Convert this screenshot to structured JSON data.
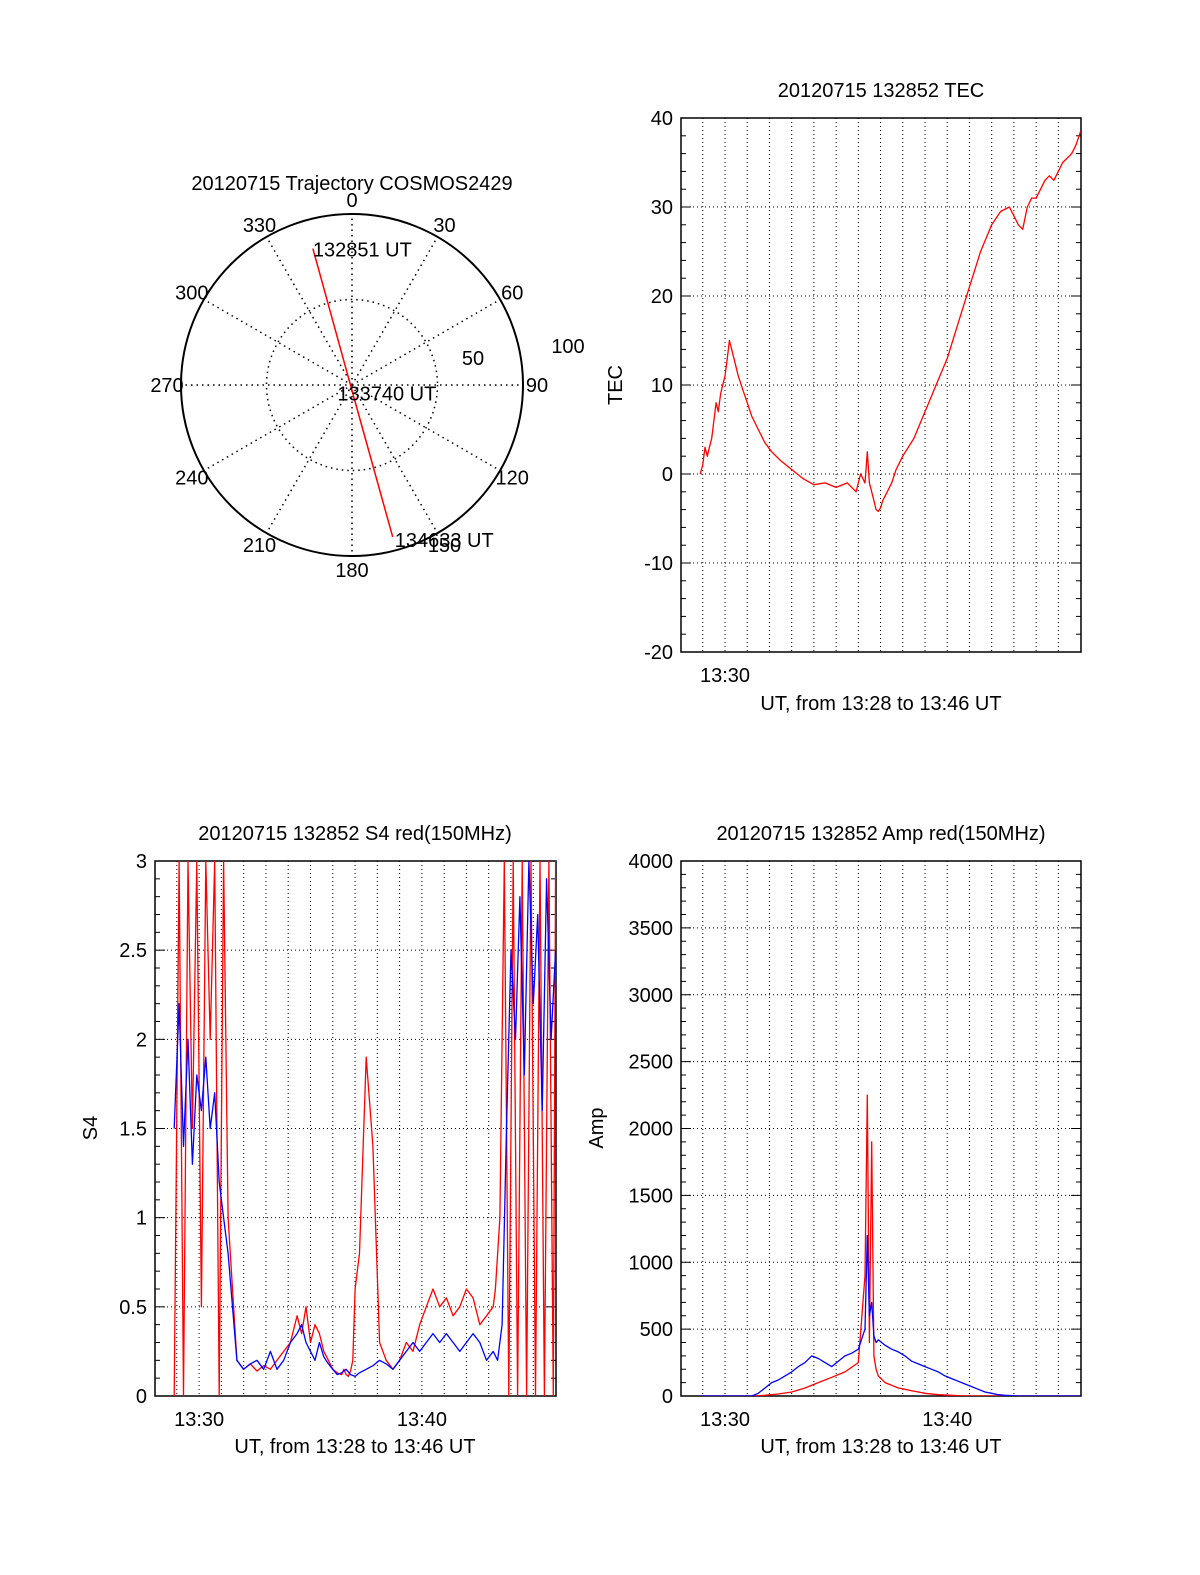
{
  "chart_data": [
    {
      "type": "polar",
      "title": "20120715 Trajectory COSMOS2429",
      "azimuth_labels": [
        "0",
        "30",
        "60",
        "90",
        "120",
        "150",
        "180",
        "210",
        "240",
        "270",
        "300",
        "330"
      ],
      "zenith_rings": [
        50,
        100
      ],
      "zenith_ring_labels": [
        "50",
        "100"
      ],
      "track": {
        "color": "#ff0000",
        "points": [
          {
            "az": 344,
            "zen": 83,
            "label": "132851 UT"
          },
          {
            "az": 190,
            "zen": 2,
            "label": "133740 UT"
          },
          {
            "az": 165,
            "zen": 92,
            "label": "134633 UT"
          }
        ]
      }
    },
    {
      "type": "line",
      "title": "20120715 132852 TEC",
      "xlabel": "UT, from 13:28 to 13:46 UT",
      "ylabel": "TEC",
      "xlim": [
        13.467,
        13.767
      ],
      "ylim": [
        -20,
        40
      ],
      "y_ticks": [
        "-20",
        "-10",
        "0",
        "10",
        "20",
        "30",
        "40"
      ],
      "x_ticks": [
        {
          "value": 13.5,
          "label": "13:30"
        }
      ],
      "grid": true,
      "series": [
        {
          "color": "#ff0000",
          "x": [
            13.4814,
            13.4833,
            13.485,
            13.4867,
            13.4883,
            13.49,
            13.4917,
            13.4933,
            13.495,
            13.4967,
            13.4983,
            13.5,
            13.5017,
            13.5033,
            13.505,
            13.5067,
            13.5083,
            13.51,
            13.5133,
            13.5167,
            13.52,
            13.525,
            13.53,
            13.535,
            13.5417,
            13.55,
            13.5583,
            13.5667,
            13.575,
            13.5833,
            13.5917,
            13.5983,
            13.6017,
            13.605,
            13.6067,
            13.6083,
            13.61,
            13.6117,
            13.6133,
            13.615,
            13.6167,
            13.6183,
            13.62,
            13.625,
            13.6283,
            13.6333,
            13.6417,
            13.65,
            13.6583,
            13.6667,
            13.675,
            13.6833,
            13.6917,
            13.7,
            13.7067,
            13.7133,
            13.7167,
            13.72,
            13.7233,
            13.7267,
            13.73,
            13.7333,
            13.7367,
            13.74,
            13.7433,
            13.7467,
            13.75,
            13.7533,
            13.7567,
            13.76,
            13.7633,
            13.7667
          ],
          "y": [
            0,
            1,
            3,
            2,
            3,
            4,
            6,
            8,
            7,
            9,
            10,
            11,
            13,
            15,
            14,
            13,
            12,
            11,
            9.5,
            8,
            6.5,
            5,
            3.5,
            2.5,
            1.5,
            0.5,
            -0.5,
            -1.2,
            -1,
            -1.5,
            -1,
            -2,
            0,
            -1,
            2.5,
            -1,
            -2,
            -3,
            -4,
            -4.2,
            -3.8,
            -3,
            -2.5,
            -1,
            0.5,
            2,
            4,
            7,
            10,
            13,
            17,
            21,
            25,
            28,
            29.5,
            30,
            29,
            28,
            27.5,
            30,
            31,
            31,
            32,
            33,
            33.5,
            33,
            34,
            35,
            35.5,
            36,
            37,
            38.5
          ]
        }
      ]
    },
    {
      "type": "line",
      "title": "20120715 132852 S4 red(150MHz)",
      "xlabel": "UT, from 13:28 to 13:46 UT",
      "ylabel": "S4",
      "xlim": [
        13.467,
        13.767
      ],
      "ylim": [
        0,
        3
      ],
      "y_ticks": [
        "0",
        "0.5",
        "1",
        "1.5",
        "2",
        "2.5",
        "3"
      ],
      "x_ticks": [
        {
          "value": 13.5,
          "label": "13:30"
        },
        {
          "value": 13.6667,
          "label": "13:40"
        }
      ],
      "grid": true,
      "series": [
        {
          "color": "#ff0000",
          "x": [
            13.4814,
            13.485,
            13.4883,
            13.4917,
            13.495,
            13.4983,
            13.5017,
            13.505,
            13.5083,
            13.5117,
            13.515,
            13.5183,
            13.5217,
            13.525,
            13.5283,
            13.5333,
            13.5383,
            13.5433,
            13.5483,
            13.5533,
            13.5583,
            13.5633,
            13.5683,
            13.5733,
            13.5767,
            13.58,
            13.5833,
            13.5867,
            13.59,
            13.5933,
            13.5967,
            13.6,
            13.6033,
            13.6067,
            13.6083,
            13.61,
            13.6117,
            13.6133,
            13.615,
            13.6167,
            13.62,
            13.625,
            13.63,
            13.635,
            13.64,
            13.645,
            13.65,
            13.655,
            13.66,
            13.665,
            13.67,
            13.675,
            13.68,
            13.685,
            13.69,
            13.695,
            13.7,
            13.705,
            13.71,
            13.715,
            13.72,
            13.7217,
            13.725,
            13.7283,
            13.7317,
            13.735,
            13.7383,
            13.7417,
            13.745,
            13.7483,
            13.7517,
            13.755,
            13.7583,
            13.7617,
            13.765,
            13.7667
          ],
          "y": [
            0,
            3,
            0,
            3,
            1.5,
            3,
            0.5,
            3,
            2,
            3,
            0,
            3,
            1,
            0.6,
            0.2,
            0.15,
            0.18,
            0.14,
            0.17,
            0.15,
            0.2,
            0.25,
            0.3,
            0.45,
            0.35,
            0.5,
            0.3,
            0.4,
            0.35,
            0.25,
            0.2,
            0.15,
            0.13,
            0.12,
            0.15,
            0.12,
            0.11,
            0.14,
            0.2,
            0.6,
            0.8,
            1.9,
            1.4,
            0.3,
            0.2,
            0.15,
            0.2,
            0.3,
            0.25,
            0.4,
            0.5,
            0.6,
            0.5,
            0.55,
            0.45,
            0.5,
            0.6,
            0.55,
            0.4,
            0.45,
            0.5,
            0.6,
            1.0,
            3,
            0,
            3,
            0,
            3,
            0,
            3,
            0,
            3,
            0,
            3,
            0,
            3
          ]
        },
        {
          "color": "#0000ff",
          "x": [
            13.4814,
            13.485,
            13.4883,
            13.4917,
            13.495,
            13.4983,
            13.5017,
            13.505,
            13.5083,
            13.5117,
            13.515,
            13.5183,
            13.5217,
            13.525,
            13.5283,
            13.5333,
            13.5383,
            13.5433,
            13.5483,
            13.5533,
            13.5583,
            13.5633,
            13.5683,
            13.5733,
            13.5767,
            13.58,
            13.5833,
            13.5867,
            13.59,
            13.5933,
            13.5967,
            13.6,
            13.6033,
            13.6067,
            13.61,
            13.6133,
            13.6167,
            13.62,
            13.625,
            13.63,
            13.635,
            13.64,
            13.645,
            13.65,
            13.655,
            13.66,
            13.665,
            13.67,
            13.675,
            13.68,
            13.685,
            13.69,
            13.695,
            13.7,
            13.705,
            13.71,
            13.715,
            13.72,
            13.7233,
            13.7267,
            13.73,
            13.7333,
            13.7367,
            13.74,
            13.7433,
            13.7467,
            13.75,
            13.7533,
            13.7567,
            13.76,
            13.7633,
            13.7667
          ],
          "y": [
            1.5,
            2.2,
            1.4,
            2.0,
            1.3,
            1.8,
            1.6,
            1.9,
            1.5,
            1.7,
            1.2,
            1.0,
            0.8,
            0.5,
            0.2,
            0.15,
            0.18,
            0.2,
            0.15,
            0.25,
            0.15,
            0.2,
            0.3,
            0.35,
            0.4,
            0.3,
            0.25,
            0.2,
            0.3,
            0.22,
            0.18,
            0.15,
            0.12,
            0.13,
            0.15,
            0.12,
            0.11,
            0.13,
            0.15,
            0.17,
            0.2,
            0.18,
            0.15,
            0.2,
            0.25,
            0.3,
            0.25,
            0.3,
            0.35,
            0.3,
            0.35,
            0.3,
            0.25,
            0.3,
            0.35,
            0.3,
            0.2,
            0.25,
            0.2,
            0.4,
            1.5,
            2.5,
            2.0,
            2.8,
            1.8,
            3.0,
            2.2,
            2.7,
            1.6,
            2.9,
            2.0,
            2.5
          ]
        }
      ]
    },
    {
      "type": "line",
      "title": "20120715 132852 Amp red(150MHz)",
      "xlabel": "UT, from 13:28 to 13:46 UT",
      "ylabel": "Amp",
      "xlim": [
        13.467,
        13.767
      ],
      "ylim": [
        0,
        4000
      ],
      "y_ticks": [
        "0",
        "500",
        "1000",
        "1500",
        "2000",
        "2500",
        "3000",
        "3500",
        "4000"
      ],
      "x_ticks": [
        {
          "value": 13.5,
          "label": "13:30"
        },
        {
          "value": 13.6667,
          "label": "13:40"
        }
      ],
      "grid": true,
      "series": [
        {
          "color": "#ff0000",
          "x": [
            13.4814,
            13.5,
            13.51,
            13.52,
            13.53,
            13.54,
            13.55,
            13.56,
            13.57,
            13.58,
            13.59,
            13.6,
            13.605,
            13.6067,
            13.6083,
            13.61,
            13.6117,
            13.6133,
            13.615,
            13.62,
            13.625,
            13.63,
            13.635,
            13.64,
            13.645,
            13.65,
            13.66,
            13.67,
            13.68,
            13.69,
            13.7,
            13.71,
            13.72,
            13.73,
            13.74,
            13.75,
            13.76,
            13.7667
          ],
          "y": [
            0,
            0,
            0,
            0,
            5,
            15,
            30,
            60,
            100,
            140,
            180,
            250,
            900,
            2250,
            400,
            1900,
            300,
            200,
            150,
            100,
            80,
            60,
            50,
            40,
            30,
            20,
            10,
            5,
            0,
            0,
            0,
            0,
            0,
            0,
            0,
            0,
            0,
            0
          ]
        },
        {
          "color": "#0000ff",
          "x": [
            13.4814,
            13.5,
            13.51,
            13.52,
            13.525,
            13.53,
            13.535,
            13.54,
            13.545,
            13.55,
            13.555,
            13.56,
            13.565,
            13.57,
            13.575,
            13.58,
            13.585,
            13.59,
            13.595,
            13.6,
            13.605,
            13.6067,
            13.6083,
            13.61,
            13.6117,
            13.6133,
            13.615,
            13.62,
            13.625,
            13.63,
            13.635,
            13.64,
            13.645,
            13.65,
            13.655,
            13.66,
            13.665,
            13.67,
            13.675,
            13.68,
            13.685,
            13.69,
            13.695,
            13.7,
            13.705,
            13.71,
            13.72,
            13.73,
            13.74,
            13.75,
            13.76,
            13.7667
          ],
          "y": [
            0,
            0,
            0,
            0,
            20,
            60,
            100,
            120,
            150,
            180,
            220,
            250,
            300,
            280,
            250,
            220,
            260,
            300,
            320,
            350,
            500,
            1200,
            600,
            700,
            450,
            400,
            420,
            380,
            350,
            330,
            300,
            260,
            240,
            220,
            200,
            180,
            150,
            130,
            110,
            90,
            70,
            50,
            30,
            20,
            10,
            5,
            0,
            0,
            0,
            0,
            0,
            0
          ]
        }
      ]
    }
  ]
}
